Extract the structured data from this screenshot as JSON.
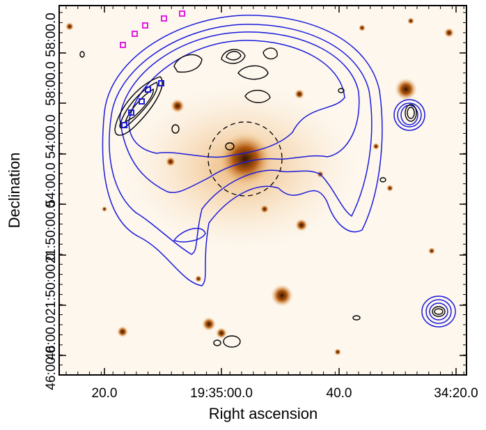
{
  "chart_data": {
    "type": "image",
    "xlabel": "Right ascension",
    "ylabel": "Declination",
    "xtick_labels": [
      "20.0",
      "19:35:00.0",
      "40.0",
      "34:20.0"
    ],
    "ytick_labels": [
      "58:00.0",
      "58:00.0",
      "54:00.0",
      "54:00.0",
      "21:50:00.0",
      "21:50:00.0",
      "46:00.0",
      "46:00.0"
    ]
  }
}
